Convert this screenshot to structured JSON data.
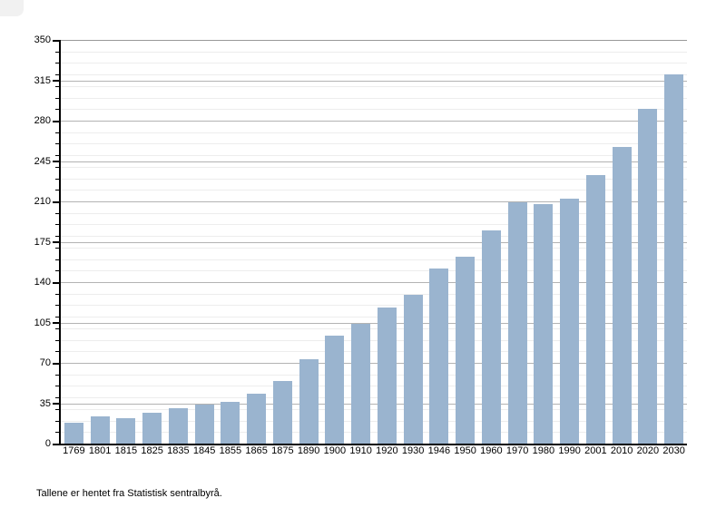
{
  "page": {
    "background": "#ffffff"
  },
  "caption": "Tallene er hentet fra Statistisk sentralbyrå.",
  "chart_data": {
    "type": "bar",
    "title": "",
    "xlabel": "",
    "ylabel": "",
    "categories": [
      "1769",
      "1801",
      "1815",
      "1825",
      "1835",
      "1845",
      "1855",
      "1865",
      "1875",
      "1890",
      "1900",
      "1910",
      "1920",
      "1930",
      "1946",
      "1950",
      "1960",
      "1970",
      "1980",
      "1990",
      "2001",
      "2010",
      "2020",
      "2030"
    ],
    "values": [
      18,
      24,
      22,
      27,
      31,
      34,
      36,
      43,
      54,
      73,
      94,
      104,
      118,
      129,
      152,
      162,
      185,
      209,
      208,
      212,
      233,
      257,
      290,
      320
    ],
    "ylim": [
      0,
      350
    ],
    "yticks": [
      0,
      35,
      70,
      105,
      140,
      175,
      210,
      245,
      280,
      315,
      350
    ],
    "ytick_step": 35,
    "minor_grid_step": 10,
    "grid": "on",
    "legend": "none",
    "bar_color": "#9ab4cf",
    "major_grid_color": "#b3b3b3",
    "minor_grid_color": "#ededed",
    "top_grid_color": "#999999",
    "axis_color": "#000000",
    "source_note": "Tallene er hentet fra Statistisk sentralbyrå."
  }
}
